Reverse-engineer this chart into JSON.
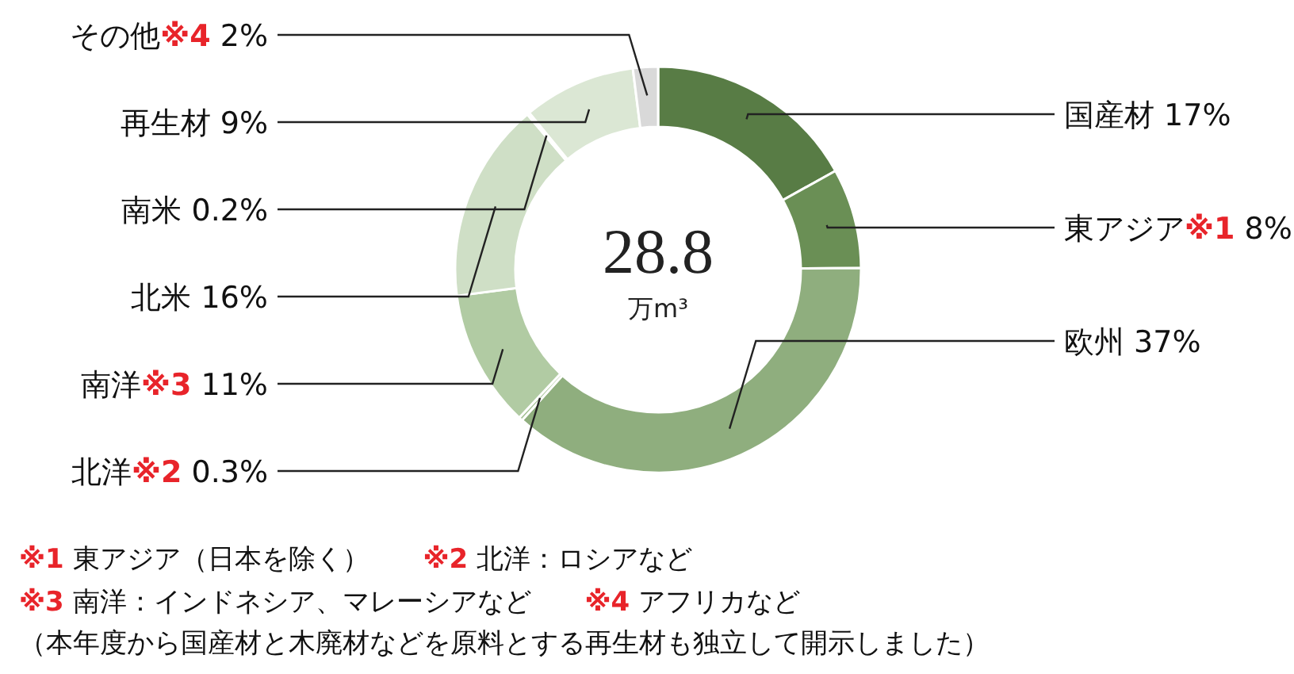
{
  "chart_data": {
    "type": "donut",
    "categories": [
      "国産材",
      "東アジア※1",
      "欧州",
      "北洋※2",
      "南洋※3",
      "北米",
      "南米",
      "再生材",
      "その他※4"
    ],
    "values": [
      17,
      8,
      37,
      0.3,
      11,
      16,
      0.2,
      9,
      2
    ],
    "value_labels": [
      "17%",
      "8%",
      "37%",
      "0.3%",
      "11%",
      "16%",
      "0.2%",
      "9%",
      "2%"
    ],
    "colors": [
      "#587c45",
      "#6a8f55",
      "#8fae7e",
      "#a4c094",
      "#b1cba3",
      "#cfdfc6",
      "#d6e3cf",
      "#dbe7d4",
      "#d9d9d9"
    ],
    "annotations": [
      "28.8",
      "万m³",
      "※1 東アジア（日本を除く）",
      "※2 北洋：ロシアなど",
      "※3 南洋：インドネシア、マレーシアなど",
      "※4 アフリカなど",
      "（本年度から国産材と木廃材などを原料とする再生材も独立して開示しました）"
    ]
  }
}
